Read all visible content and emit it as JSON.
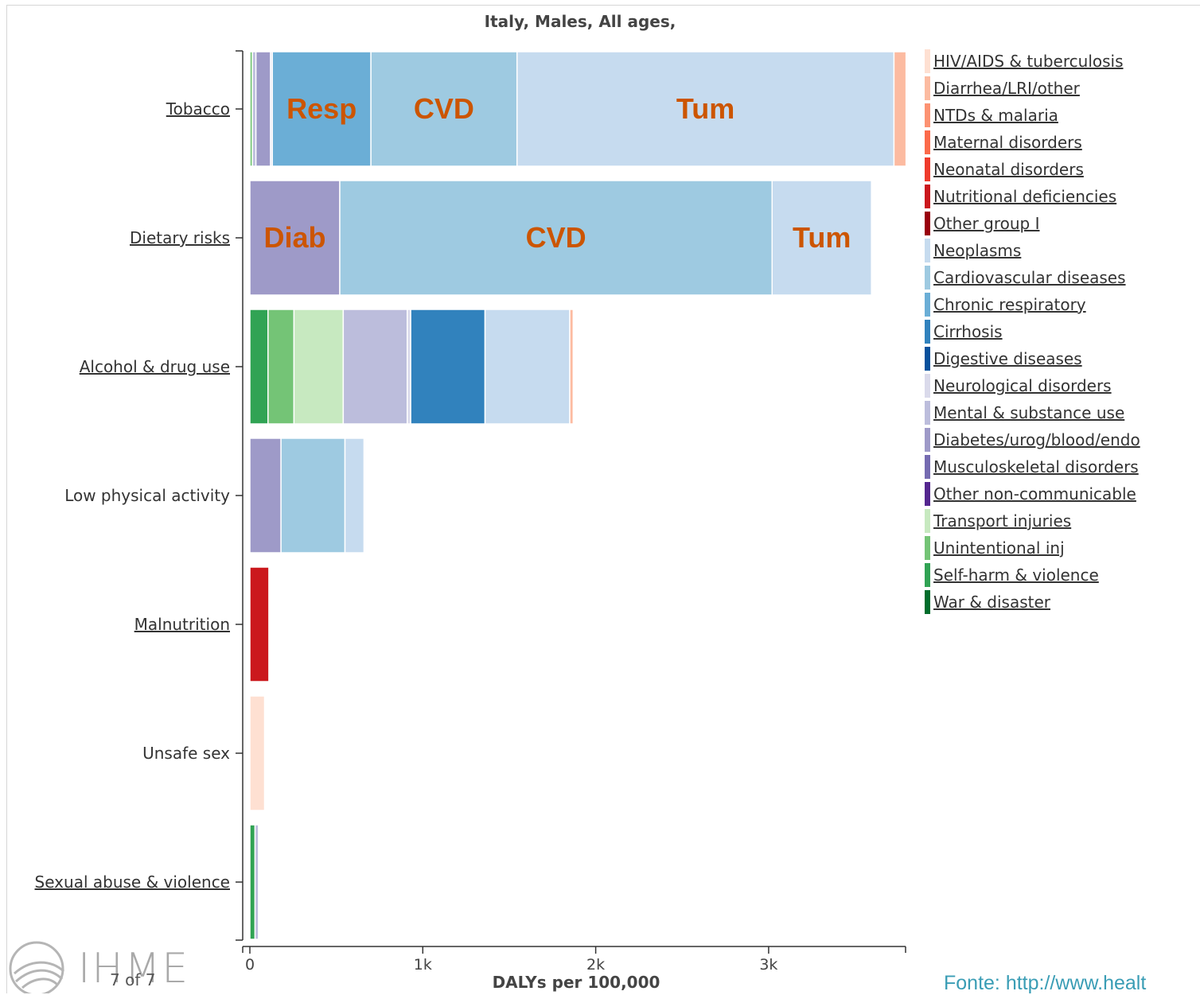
{
  "title": "Italy, Males, All ages,",
  "xlabel": "DALYs per 100,000",
  "page_indicator": "7 of 7",
  "logo": "IHME",
  "source_text": "Fonte: http://www.healt",
  "colors": {
    "HIV/AIDS & tuberculosis": "#fee0d2",
    "Diarrhea/LRI/other": "#fcbba1",
    "NTDs & malaria": "#fc9272",
    "Maternal disorders": "#fb6a4a",
    "Neonatal disorders": "#ef3b2c",
    "Nutritional deficiencies": "#cb181d",
    "Other group I": "#99000d",
    "Neoplasms": "#c6dbef",
    "Cardiovascular diseases": "#9ecae1",
    "Chronic respiratory": "#6baed6",
    "Cirrhosis": "#3182bd",
    "Digestive diseases": "#08519c",
    "Neurological disorders": "#dadaeb",
    "Mental & substance use": "#bcbddc",
    "Diabetes/urog/blood/endo": "#9e9ac8",
    "Musculoskeletal disorders": "#756bb1",
    "Other non-communicable": "#54278f",
    "Transport injuries": "#c7e9c0",
    "Unintentional inj": "#74c476",
    "Self-harm & violence": "#31a354",
    "War & disaster": "#006d2c"
  },
  "legend": [
    "HIV/AIDS & tuberculosis",
    "Diarrhea/LRI/other",
    "NTDs & malaria",
    "Maternal disorders",
    "Neonatal disorders",
    "Nutritional deficiencies",
    "Other group I",
    "Neoplasms",
    "Cardiovascular diseases",
    "Chronic respiratory",
    "Cirrhosis",
    "Digestive diseases",
    "Neurological disorders",
    "Mental & substance use",
    "Diabetes/urog/blood/endo",
    "Musculoskeletal disorders",
    "Other non-communicable",
    "Transport injuries",
    "Unintentional inj",
    "Self-harm & violence",
    "War & disaster"
  ],
  "chart_data": {
    "type": "bar",
    "orientation": "horizontal",
    "stacked": true,
    "title": "Italy, Males, All ages,",
    "xlabel": "DALYs per 100,000",
    "ylabel": "",
    "xlim": [
      0,
      3800
    ],
    "xticks": [
      {
        "value": 0,
        "label": "0"
      },
      {
        "value": 1000,
        "label": "1k"
      },
      {
        "value": 2000,
        "label": "2k"
      },
      {
        "value": 3000,
        "label": "3k"
      }
    ],
    "grid": false,
    "legend_position": "right",
    "categories": [
      {
        "label": "Tobacco",
        "underlined": true
      },
      {
        "label": "Dietary risks",
        "underlined": true
      },
      {
        "label": "Alcohol & drug use",
        "underlined": true
      },
      {
        "label": "Low physical activity",
        "underlined": false
      },
      {
        "label": "Malnutrition",
        "underlined": true
      },
      {
        "label": "Unsafe sex",
        "underlined": false
      },
      {
        "label": "Sexual abuse & violence",
        "underlined": true
      }
    ],
    "bars": [
      {
        "category": "Tobacco",
        "segments": [
          {
            "cause": "Unintentional inj",
            "value": 15
          },
          {
            "cause": "Mental & substance use",
            "value": 20
          },
          {
            "cause": "Diabetes/urog/blood/endo",
            "value": 85
          },
          {
            "cause": "Neurological disorders",
            "value": 10
          },
          {
            "cause": "Chronic respiratory",
            "value": 570
          },
          {
            "cause": "Cardiovascular diseases",
            "value": 845
          },
          {
            "cause": "Neoplasms",
            "value": 2180
          },
          {
            "cause": "Diarrhea/LRI/other",
            "value": 70
          }
        ]
      },
      {
        "category": "Dietary risks",
        "segments": [
          {
            "cause": "Diabetes/urog/blood/endo",
            "value": 520
          },
          {
            "cause": "Cardiovascular diseases",
            "value": 2500
          },
          {
            "cause": "Neoplasms",
            "value": 575
          }
        ]
      },
      {
        "category": "Alcohol & drug use",
        "segments": [
          {
            "cause": "Self-harm & violence",
            "value": 105
          },
          {
            "cause": "Unintentional inj",
            "value": 150
          },
          {
            "cause": "Transport injuries",
            "value": 285
          },
          {
            "cause": "Mental & substance use",
            "value": 370
          },
          {
            "cause": "Neurological disorders",
            "value": 20
          },
          {
            "cause": "Cirrhosis",
            "value": 430
          },
          {
            "cause": "Neoplasms",
            "value": 490
          },
          {
            "cause": "Diarrhea/LRI/other",
            "value": 20
          }
        ]
      },
      {
        "category": "Low physical activity",
        "segments": [
          {
            "cause": "Diabetes/urog/blood/endo",
            "value": 180
          },
          {
            "cause": "Cardiovascular diseases",
            "value": 370
          },
          {
            "cause": "Neoplasms",
            "value": 110
          }
        ]
      },
      {
        "category": "Malnutrition",
        "segments": [
          {
            "cause": "Nutritional deficiencies",
            "value": 110
          }
        ]
      },
      {
        "category": "Unsafe sex",
        "segments": [
          {
            "cause": "HIV/AIDS & tuberculosis",
            "value": 85
          }
        ]
      },
      {
        "category": "Sexual abuse & violence",
        "segments": [
          {
            "cause": "Self-harm & violence",
            "value": 30
          },
          {
            "cause": "Mental & substance use",
            "value": 20
          }
        ]
      }
    ],
    "annotations": [
      {
        "category": "Tobacco",
        "cause": "Chronic respiratory",
        "text": "Resp"
      },
      {
        "category": "Tobacco",
        "cause": "Cardiovascular diseases",
        "text": "CVD"
      },
      {
        "category": "Tobacco",
        "cause": "Neoplasms",
        "text": "Tum"
      },
      {
        "category": "Dietary risks",
        "cause": "Diabetes/urog/blood/endo",
        "text": "Diab"
      },
      {
        "category": "Dietary risks",
        "cause": "Cardiovascular diseases",
        "text": "CVD"
      },
      {
        "category": "Dietary risks",
        "cause": "Neoplasms",
        "text": "Tum"
      }
    ],
    "annotation_color": "#cc5500"
  }
}
